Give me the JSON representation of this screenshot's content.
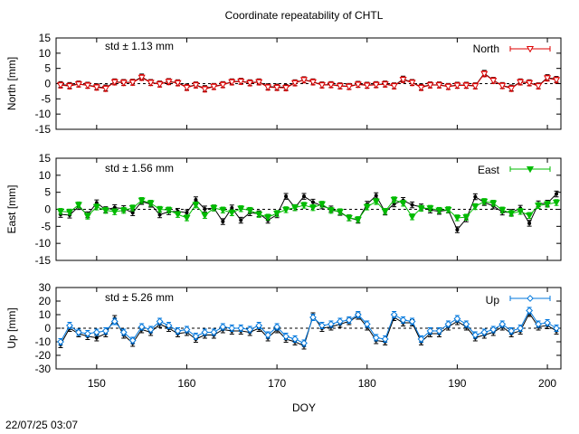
{
  "chart_data": {
    "type": "scatter",
    "title": "Coordinate repeatability of CHTL",
    "xlabel": "DOY",
    "xlim": [
      145.5,
      201.5
    ],
    "xticks": [
      150,
      160,
      170,
      180,
      190,
      200
    ],
    "timestamp": "22/07/25 03:07",
    "x": [
      146,
      147,
      148,
      149,
      150,
      151,
      152,
      153,
      154,
      155,
      156,
      157,
      158,
      159,
      160,
      161,
      162,
      163,
      164,
      165,
      166,
      167,
      168,
      169,
      170,
      171,
      172,
      173,
      174,
      175,
      176,
      177,
      178,
      179,
      180,
      181,
      182,
      183,
      184,
      185,
      186,
      187,
      188,
      189,
      190,
      191,
      192,
      193,
      194,
      195,
      196,
      197,
      198,
      199,
      200,
      201
    ],
    "panels": [
      {
        "ylabel": "North [mm]",
        "ylim": [
          -15,
          15
        ],
        "yticks": [
          -15,
          -10,
          -5,
          0,
          5,
          10,
          15
        ],
        "legend": "North",
        "std_label": "std ± 1.13 mm",
        "color": "#dd0000",
        "marker": "triangle-down-open",
        "series": [
          {
            "name": "North",
            "values": [
              -0.5,
              -0.8,
              -0.2,
              -0.6,
              -1.2,
              -1.6,
              0.5,
              0.3,
              0.4,
              2.0,
              0.3,
              -0.2,
              0.6,
              0.2,
              -1.3,
              -0.5,
              -1.8,
              -1.0,
              -0.4,
              0.5,
              0.7,
              0.2,
              0.5,
              -1.2,
              -1.3,
              -1.4,
              0.2,
              1.2,
              0.5,
              -0.5,
              -0.4,
              -0.8,
              -1.0,
              -0.3,
              -0.6,
              -0.4,
              -0.2,
              -0.8,
              1.3,
              0.3,
              -1.3,
              -0.5,
              -0.5,
              -1.0,
              -0.6,
              -0.6,
              -0.8,
              3.2,
              1.0,
              -0.7,
              -1.6,
              0.5,
              0.2,
              -0.8,
              1.8,
              1.2
            ]
          },
          {
            "name": "",
            "values": [
              -0.3,
              -0.6,
              -0.1,
              -0.5,
              -1.0,
              -1.4,
              0.6,
              0.4,
              0.5,
              2.2,
              0.4,
              -0.1,
              0.7,
              0.3,
              -1.1,
              -0.4,
              -1.6,
              -0.9,
              -0.3,
              0.6,
              0.8,
              0.3,
              0.6,
              -1.0,
              -1.1,
              -1.2,
              0.3,
              1.3,
              0.6,
              -0.4,
              -0.3,
              -0.7,
              -0.9,
              -0.2,
              -0.5,
              -0.3,
              -0.1,
              -0.7,
              1.5,
              0.4,
              -1.1,
              -0.4,
              -0.4,
              -0.9,
              -0.5,
              -0.5,
              -0.7,
              3.4,
              1.1,
              -0.6,
              -1.4,
              0.6,
              0.3,
              -0.7,
              2.0,
              1.4
            ]
          }
        ]
      },
      {
        "ylabel": "East [mm]",
        "ylim": [
          -15,
          15
        ],
        "yticks": [
          -15,
          -10,
          -5,
          0,
          5,
          10,
          15
        ],
        "legend": "East",
        "std_label": "std ± 1.56 mm",
        "color": "#00bb00",
        "marker": "triangle-down-filled",
        "series": [
          {
            "name": "East",
            "values": [
              -0.6,
              -0.8,
              1.3,
              -2.0,
              0.7,
              -0.3,
              -0.7,
              -0.3,
              0.4,
              2.6,
              1.8,
              0.0,
              -0.2,
              -1.5,
              -2.5,
              1.3,
              -1.8,
              0.4,
              -0.2,
              -1.0,
              0.2,
              -0.3,
              -1.5,
              -2.3,
              -1.2,
              -0.1,
              0.5,
              1.2,
              0.5,
              1.5,
              -0.3,
              -0.7,
              -2.5,
              -3.0,
              0.7,
              2.3,
              -0.6,
              2.8,
              1.8,
              -2.2,
              0.3,
              0.3,
              -0.3,
              -0.1,
              -2.5,
              -2.3,
              0.8,
              2.3,
              1.8,
              -0.2,
              -1.2,
              -0.6,
              -1.8,
              1.1,
              1.5,
              2.0
            ]
          },
          {
            "name": "",
            "values": [
              -1.5,
              -1.7,
              0.8,
              -1.6,
              1.9,
              -0.1,
              0.5,
              0.2,
              -1.0,
              2.3,
              1.5,
              -1.6,
              -0.7,
              -0.6,
              -1.0,
              2.8,
              0.1,
              0.4,
              -3.6,
              0.4,
              -3.2,
              -1.0,
              -1.3,
              -3.2,
              -1.6,
              3.8,
              0.5,
              3.8,
              2.1,
              1.0,
              0.1,
              -0.9,
              -2.5,
              -3.2,
              1.5,
              4.0,
              -0.8,
              1.6,
              2.6,
              1.3,
              0.7,
              -0.2,
              -0.6,
              -0.2,
              -6.0,
              -2.8,
              3.7,
              2.0,
              1.0,
              -0.8,
              -0.9,
              0.3,
              -4.1,
              1.6,
              1.8,
              4.5
            ]
          }
        ]
      },
      {
        "ylabel": "Up [mm]",
        "ylim": [
          -30,
          30
        ],
        "yticks": [
          -30,
          -20,
          -10,
          0,
          10,
          20,
          30
        ],
        "legend": "Up",
        "std_label": "std ± 5.26 mm",
        "color": "#0077dd",
        "marker": "diamond-open",
        "series": [
          {
            "name": "Up",
            "values": [
              -10,
              2,
              -3,
              -4,
              -3,
              -2,
              5,
              -3,
              -9,
              1,
              -1,
              5,
              2,
              -2,
              -1,
              -6,
              -3,
              -3,
              1,
              0,
              0,
              -1,
              2,
              -5,
              1,
              -6,
              -8,
              -11,
              8,
              2,
              3,
              5,
              6,
              10,
              3,
              -7,
              -8,
              10,
              6,
              5,
              -8,
              -2,
              -2,
              3,
              7,
              3,
              -5,
              -3,
              -1,
              3,
              -2,
              0,
              13,
              3,
              4,
              0
            ]
          },
          {
            "name": "",
            "values": [
              -12,
              0,
              -4,
              -6,
              -7,
              -4,
              7,
              -5,
              -11,
              -1,
              -3,
              3,
              0,
              -4,
              -3,
              -8,
              -5,
              -5,
              -1,
              -2,
              -2,
              -3,
              0,
              -7,
              -1,
              -8,
              -10,
              -13,
              9,
              0,
              1,
              3,
              5,
              9,
              1,
              -9,
              -10,
              8,
              4,
              4,
              -10,
              -4,
              -4,
              1,
              5,
              1,
              -7,
              -5,
              -3,
              1,
              -4,
              -2,
              11,
              1,
              2,
              -2
            ]
          }
        ]
      }
    ]
  }
}
